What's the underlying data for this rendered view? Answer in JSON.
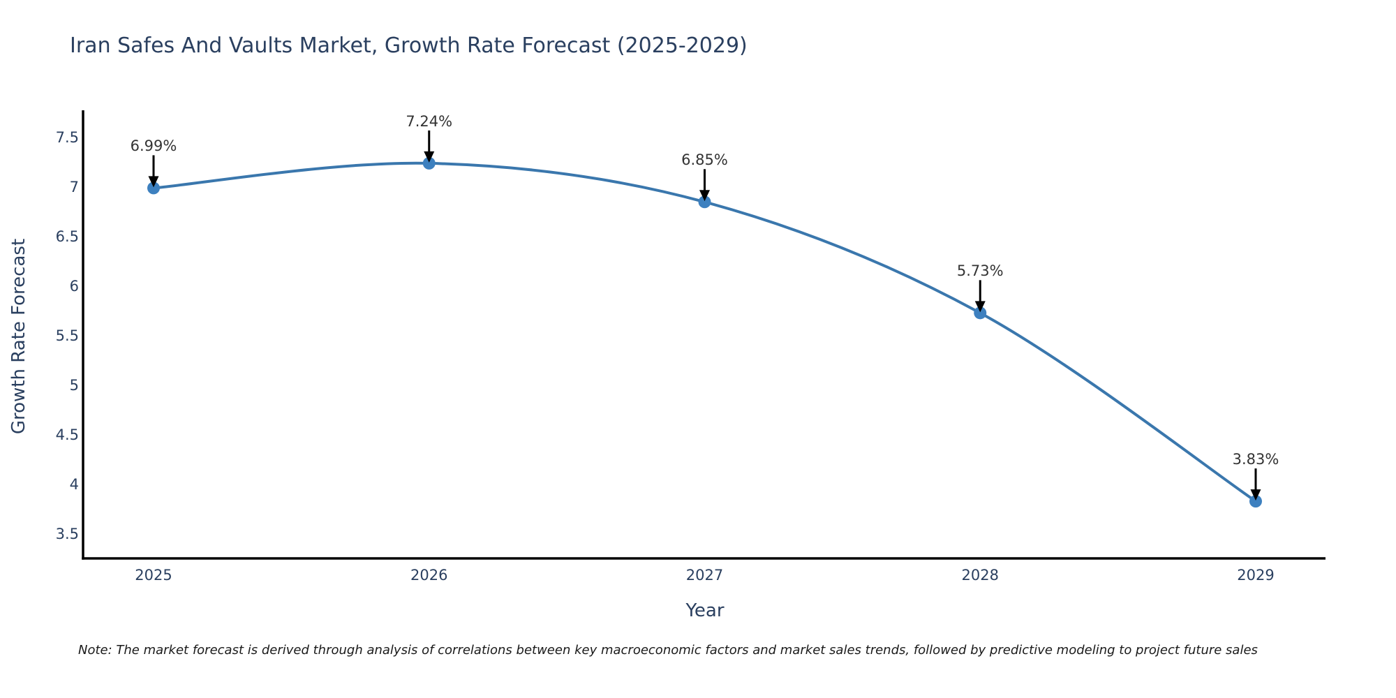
{
  "chart_data": {
    "type": "line",
    "title": "Iran Safes And Vaults Market, Growth Rate Forecast (2025-2029)",
    "xlabel": "Year",
    "ylabel": "Growth Rate Forecast",
    "categories": [
      "2025",
      "2026",
      "2027",
      "2028",
      "2029"
    ],
    "series": [
      {
        "name": "Growth Rate Forecast",
        "values": [
          6.99,
          7.24,
          6.85,
          5.73,
          3.83
        ],
        "point_labels": [
          "6.99%",
          "7.24%",
          "6.85%",
          "5.73%",
          "3.83%"
        ]
      }
    ],
    "yticks": [
      "7.5",
      "7",
      "6.5",
      "6",
      "5.5",
      "5",
      "4.5",
      "4",
      "3.5"
    ],
    "ytick_values": [
      7.5,
      7.0,
      6.5,
      6.0,
      5.5,
      5.0,
      4.5,
      4.0,
      3.5
    ],
    "ylim": [
      3.25,
      7.8
    ],
    "grid": false,
    "legend": "none",
    "colors": {
      "line": "#3a77ad",
      "marker": "#3d80bf",
      "axis": "#000000",
      "title_text": "#2a3f5f",
      "tick_text": "#2a3f5f",
      "annotation_text": "#333333",
      "arrow": "#000000",
      "background": "#ffffff"
    }
  },
  "footnote": "Note: The market forecast is derived through analysis of correlations between key macroeconomic factors and market sales trends, followed by predictive modeling to project future sales"
}
